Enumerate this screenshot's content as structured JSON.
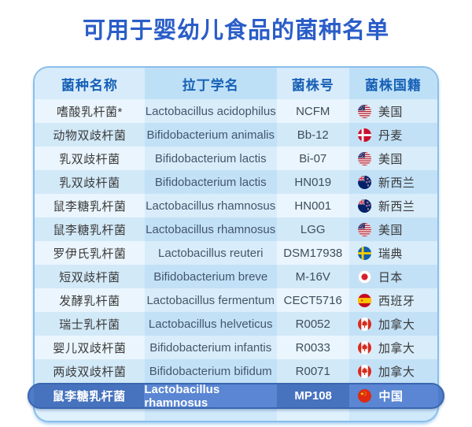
{
  "title": "可用于婴幼儿食品的菌种名单",
  "colors": {
    "title_text": "#2A5DC8",
    "header_text": "#1760B6",
    "table_border": "#8ABEEA",
    "highlight_row_bg": "#4F7CC8",
    "highlight_text": "#FFFFFF"
  },
  "table": {
    "headers": [
      "菌种名称",
      "拉丁学名",
      "菌株号",
      "菌株国籍"
    ],
    "rows": [
      {
        "name": "嗜酸乳杆菌*",
        "latin": "Lactobacillus acidophilus",
        "strain_no": "NCFM",
        "flag": "flag-us",
        "country": "美国",
        "highlight": false
      },
      {
        "name": "动物双歧杆菌",
        "latin": "Bifidobacterium animalis",
        "strain_no": "Bb-12",
        "flag": "flag-dk",
        "country": "丹麦",
        "highlight": false
      },
      {
        "name": "乳双歧杆菌",
        "latin": "Bifidobacterium lactis",
        "strain_no": "Bi-07",
        "flag": "flag-us",
        "country": "美国",
        "highlight": false
      },
      {
        "name": "乳双歧杆菌",
        "latin": "Bifidobacterium lactis",
        "strain_no": "HN019",
        "flag": "flag-nz",
        "country": "新西兰",
        "highlight": false
      },
      {
        "name": "鼠李糖乳杆菌",
        "latin": "Lactobacillus rhamnosus",
        "strain_no": "HN001",
        "flag": "flag-nz",
        "country": "新西兰",
        "highlight": false
      },
      {
        "name": "鼠李糖乳杆菌",
        "latin": "Lactobacillus rhamnosus",
        "strain_no": "LGG",
        "flag": "flag-us",
        "country": "美国",
        "highlight": false
      },
      {
        "name": "罗伊氏乳杆菌",
        "latin": "Lactobacillus reuteri",
        "strain_no": "DSM17938",
        "flag": "flag-se",
        "country": "瑞典",
        "highlight": false
      },
      {
        "name": "短双歧杆菌",
        "latin": "Bifidobacterium breve",
        "strain_no": "M-16V",
        "flag": "flag-jp",
        "country": "日本",
        "highlight": false
      },
      {
        "name": "发酵乳杆菌",
        "latin": "Lactobacillus fermentum",
        "strain_no": "CECT5716",
        "flag": "flag-es",
        "country": "西班牙",
        "highlight": false
      },
      {
        "name": "瑞士乳杆菌",
        "latin": "Lactobacillus helveticus",
        "strain_no": "R0052",
        "flag": "flag-ca",
        "country": "加拿大",
        "highlight": false
      },
      {
        "name": "婴儿双歧杆菌",
        "latin": "Bifidobacterium infantis",
        "strain_no": "R0033",
        "flag": "flag-ca",
        "country": "加拿大",
        "highlight": false
      },
      {
        "name": "两歧双歧杆菌",
        "latin": "Bifidobacterium bifidum",
        "strain_no": "R0071",
        "flag": "flag-ca",
        "country": "加拿大",
        "highlight": false
      },
      {
        "name": "鼠李糖乳杆菌",
        "latin": "Lactobacillus rhamnosus",
        "strain_no": "MP108",
        "flag": "flag-cn",
        "country": "中国",
        "highlight": true
      }
    ]
  },
  "chart_data": {
    "type": "table",
    "title": "可用于婴幼儿食品的菌种名单",
    "columns": [
      "菌种名称",
      "拉丁学名",
      "菌株号",
      "菌株国籍"
    ],
    "rows": [
      [
        "嗜酸乳杆菌*",
        "Lactobacillus acidophilus",
        "NCFM",
        "美国"
      ],
      [
        "动物双歧杆菌",
        "Bifidobacterium animalis",
        "Bb-12",
        "丹麦"
      ],
      [
        "乳双歧杆菌",
        "Bifidobacterium lactis",
        "Bi-07",
        "美国"
      ],
      [
        "乳双歧杆菌",
        "Bifidobacterium lactis",
        "HN019",
        "新西兰"
      ],
      [
        "鼠李糖乳杆菌",
        "Lactobacillus rhamnosus",
        "HN001",
        "新西兰"
      ],
      [
        "鼠李糖乳杆菌",
        "Lactobacillus rhamnosus",
        "LGG",
        "美国"
      ],
      [
        "罗伊氏乳杆菌",
        "Lactobacillus reuteri",
        "DSM17938",
        "瑞典"
      ],
      [
        "短双歧杆菌",
        "Bifidobacterium breve",
        "M-16V",
        "日本"
      ],
      [
        "发酵乳杆菌",
        "Lactobacillus fermentum",
        "CECT5716",
        "西班牙"
      ],
      [
        "瑞士乳杆菌",
        "Lactobacillus helveticus",
        "R0052",
        "加拿大"
      ],
      [
        "婴儿双歧杆菌",
        "Bifidobacterium infantis",
        "R0033",
        "加拿大"
      ],
      [
        "两歧双歧杆菌",
        "Bifidobacterium bifidum",
        "R0071",
        "加拿大"
      ],
      [
        "鼠李糖乳杆菌",
        "Lactobacillus rhamnosus",
        "MP108",
        "中国"
      ]
    ],
    "layout_hints": {
      "highlighted_row_index": 12,
      "row_striping": true,
      "column_striping": true
    }
  }
}
